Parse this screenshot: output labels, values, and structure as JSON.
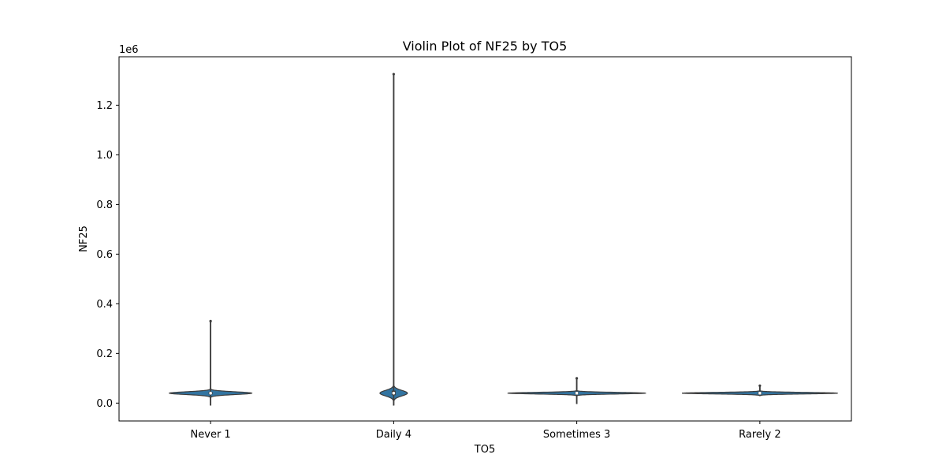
{
  "chart_data": {
    "type": "violin",
    "title": "Violin Plot of NF25 by TO5",
    "xlabel": "TO5",
    "ylabel": "NF25",
    "y_offset_label": "1e6",
    "categories": [
      "Never 1",
      "Daily 4",
      "Sometimes 3",
      "Rarely 2"
    ],
    "ylim": [
      -72000,
      1395000
    ],
    "yticks": [
      0.0,
      0.2,
      0.4,
      0.6,
      0.8,
      1.0,
      1.2
    ],
    "ytick_labels": [
      "0.0",
      "0.2",
      "0.4",
      "0.6",
      "0.8",
      "1.0",
      "1.2"
    ],
    "ytick_scale": 1000000,
    "grid": false,
    "series": [
      {
        "category": "Never 1",
        "min": -8000,
        "max": 330000,
        "q1": 35000,
        "median": 40000,
        "q3": 45000,
        "whisker_high": 60000,
        "density_center": 40000,
        "density_sigma": 5500,
        "density_width": 0.45,
        "kde_min": -8000,
        "kde_max": 330000
      },
      {
        "category": "Daily 4",
        "min": -8000,
        "max": 1325000,
        "q1": 32000,
        "median": 40000,
        "q3": 50000,
        "whisker_high": 75000,
        "density_center": 40000,
        "density_sigma": 11000,
        "density_width": 0.15,
        "kde_min": -8000,
        "kde_max": 1325000
      },
      {
        "category": "Sometimes 3",
        "min": -2000,
        "max": 100000,
        "q1": 36000,
        "median": 40000,
        "q3": 44000,
        "whisker_high": 55000,
        "density_center": 40000,
        "density_sigma": 3200,
        "density_width": 0.75,
        "kde_min": -2000,
        "kde_max": 100000
      },
      {
        "category": "Rarely 2",
        "min": 30000,
        "max": 70000,
        "q1": 36000,
        "median": 40000,
        "q3": 44000,
        "whisker_high": 68000,
        "density_center": 40000,
        "density_sigma": 3000,
        "density_width": 0.85,
        "kde_min": 30000,
        "kde_max": 70000
      }
    ],
    "colors": {
      "violin_fill": "#3274a1",
      "edge": "#3c3c3c",
      "axis": "#000000",
      "median_dot": "#ffffff"
    }
  }
}
